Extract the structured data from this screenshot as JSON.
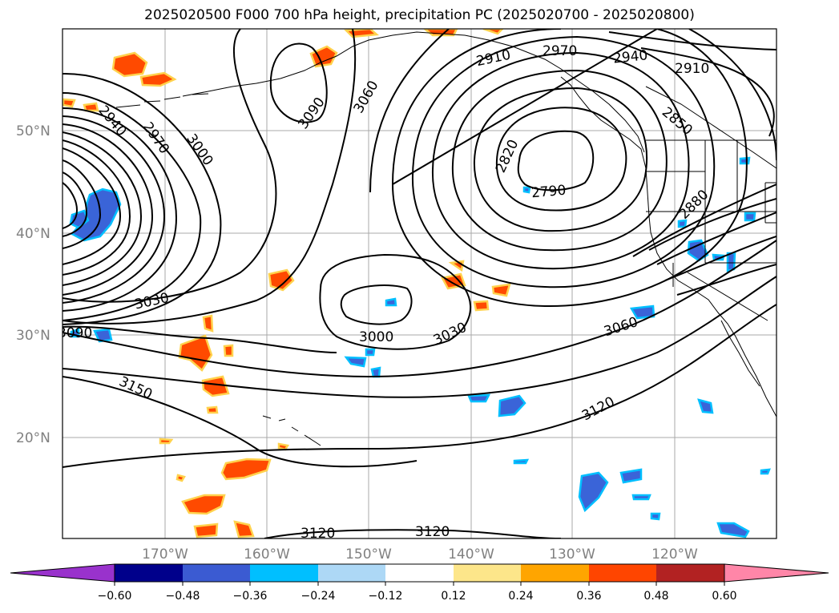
{
  "title": "2025020500 F000 700 hPa height, precipitation PC (2025020700 - 2025020800)",
  "map": {
    "lat_labels": [
      "50°N",
      "40°N",
      "30°N",
      "20°N"
    ],
    "lon_labels": [
      "170°W",
      "160°W",
      "150°W",
      "140°W",
      "130°W",
      "120°W"
    ]
  },
  "contour_labels": [
    "2790",
    "2820",
    "2850",
    "2880",
    "2910",
    "2940",
    "2970",
    "3000",
    "3030",
    "3060",
    "3090",
    "3120",
    "3150"
  ],
  "contour_label_instances": [
    "3060",
    "3090",
    "2970",
    "3000",
    "2970",
    "2940",
    "2910",
    "2850",
    "2820",
    "2790",
    "2880",
    "3030",
    "3000",
    "3030",
    "3060",
    "3120",
    "3150",
    "3120",
    "3120",
    "2940",
    "3090"
  ],
  "colorbar": {
    "ticks": [
      "−0.60",
      "−0.48",
      "−0.36",
      "−0.24",
      "−0.12",
      "0.12",
      "0.24",
      "0.36",
      "0.48",
      "0.60"
    ],
    "colors": [
      "#9932cc",
      "#00008b",
      "#3b5bd2",
      "#00bfff",
      "#add8f6",
      "#ffffff",
      "#fde68a",
      "#ffa500",
      "#ff4500",
      "#b22222",
      "#ff86a8"
    ]
  },
  "colors": {
    "contour": "#000000",
    "positive_fill": "#ff4a00",
    "positive_edge": "#ffd24d",
    "negative_fill": "#3a64d8",
    "negative_edge": "#00bfff",
    "grid": "#a8a8a8"
  }
}
